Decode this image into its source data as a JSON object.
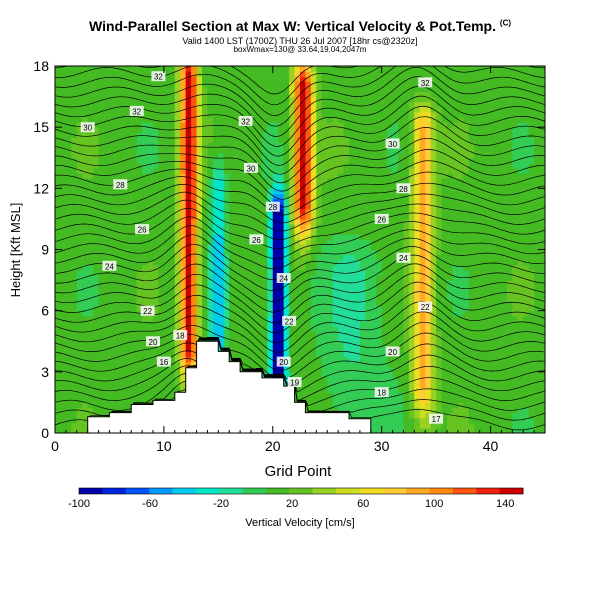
{
  "title": "Wind-Parallel Section at Max W: Vertical Velocity & Pot.Temp.",
  "title_mark": "(C)",
  "subtitle": "Valid 1400 LST (1700Z) THU 26 Jul 2007 [18hr cs@2320z]",
  "subtitle2": "boxWmax=130@ 33.64,19.04,2047m",
  "chart_data": {
    "type": "heatmap",
    "xlabel": "Grid Point",
    "ylabel": "Height [Kft MSL]",
    "xlim": [
      0,
      45
    ],
    "ylim": [
      0,
      18
    ],
    "xticks": [
      0,
      10,
      20,
      30,
      40
    ],
    "yticks": [
      0,
      3,
      6,
      9,
      12,
      15,
      18
    ],
    "colorbar": {
      "label": "Vertical Velocity [cm/s]",
      "range": [
        -100,
        150
      ],
      "ticks": [
        -100,
        -60,
        -20,
        20,
        60,
        100,
        140
      ],
      "colors": [
        "#0000aa",
        "#0022dd",
        "#0055ff",
        "#0099ff",
        "#00ccee",
        "#00e6c8",
        "#22dd99",
        "#33cc55",
        "#44bb22",
        "#66c422",
        "#99d222",
        "#ccdd22",
        "#eedd22",
        "#ffcc33",
        "#ffaa22",
        "#ff8811",
        "#ff5511",
        "#ee2211",
        "#cc0000"
      ]
    },
    "terrain": [
      [
        0,
        0
      ],
      [
        3,
        0
      ],
      [
        3,
        0.8
      ],
      [
        5,
        0.8
      ],
      [
        5,
        1
      ],
      [
        7,
        1
      ],
      [
        7,
        1.4
      ],
      [
        9,
        1.4
      ],
      [
        9,
        1.6
      ],
      [
        11,
        1.6
      ],
      [
        11,
        2
      ],
      [
        12,
        2
      ],
      [
        12,
        3.2
      ],
      [
        13,
        3.2
      ],
      [
        13,
        4.5
      ],
      [
        15,
        4.5
      ],
      [
        15,
        4
      ],
      [
        16,
        4
      ],
      [
        16,
        3.5
      ],
      [
        17,
        3.5
      ],
      [
        17,
        3
      ],
      [
        19,
        3
      ],
      [
        19,
        2.7
      ],
      [
        21,
        2.7
      ],
      [
        21,
        2.3
      ],
      [
        22,
        2.3
      ],
      [
        22,
        1.5
      ],
      [
        23,
        1.5
      ],
      [
        23,
        1
      ],
      [
        27,
        1
      ],
      [
        27,
        0.7
      ],
      [
        29,
        0.7
      ],
      [
        29,
        0
      ]
    ],
    "updrafts": [
      {
        "x": 12.3,
        "w": 0.8,
        "ytop": 17.5,
        "ybot": 4.5,
        "value": 150
      },
      {
        "x": 22.8,
        "w": 0.9,
        "ytop": 17.0,
        "ybot": 11.5,
        "value": 150
      },
      {
        "x": 33.8,
        "w": 1.0,
        "ytop": 15.0,
        "ybot": 2.5,
        "value": 90
      }
    ],
    "downdrafts": [
      {
        "x": 15.0,
        "w": 0.7,
        "ytop": 12.0,
        "ybot": 4.0,
        "value": -35
      },
      {
        "x": 20.5,
        "w": 0.7,
        "ytop": 10.5,
        "ybot": 3.0,
        "value": -110
      },
      {
        "x": 27.5,
        "w": 3.0,
        "ytop": 8.0,
        "ybot": 1.5,
        "value": -5
      }
    ],
    "theta_labels": [
      {
        "x": 9.5,
        "y": 17.5,
        "text": "32"
      },
      {
        "x": 7.5,
        "y": 15.8,
        "text": "32"
      },
      {
        "x": 3.0,
        "y": 15.0,
        "text": "30"
      },
      {
        "x": 6.0,
        "y": 12.2,
        "text": "28"
      },
      {
        "x": 8.0,
        "y": 10.0,
        "text": "26"
      },
      {
        "x": 5.0,
        "y": 8.2,
        "text": "24"
      },
      {
        "x": 8.5,
        "y": 6.0,
        "text": "22"
      },
      {
        "x": 9.0,
        "y": 4.5,
        "text": "20"
      },
      {
        "x": 11.5,
        "y": 4.8,
        "text": "18"
      },
      {
        "x": 10.0,
        "y": 3.5,
        "text": "16"
      },
      {
        "x": 17.5,
        "y": 15.3,
        "text": "32"
      },
      {
        "x": 18.0,
        "y": 13.0,
        "text": "30"
      },
      {
        "x": 20.0,
        "y": 11.1,
        "text": "28"
      },
      {
        "x": 18.5,
        "y": 9.5,
        "text": "26"
      },
      {
        "x": 21.0,
        "y": 7.6,
        "text": "24"
      },
      {
        "x": 21.5,
        "y": 5.5,
        "text": "22"
      },
      {
        "x": 21.0,
        "y": 3.5,
        "text": "20"
      },
      {
        "x": 22.0,
        "y": 2.5,
        "text": "19"
      },
      {
        "x": 34.0,
        "y": 17.2,
        "text": "32"
      },
      {
        "x": 31.0,
        "y": 14.2,
        "text": "30"
      },
      {
        "x": 32.0,
        "y": 12.0,
        "text": "28"
      },
      {
        "x": 30.0,
        "y": 10.5,
        "text": "26"
      },
      {
        "x": 32.0,
        "y": 8.6,
        "text": "24"
      },
      {
        "x": 34.0,
        "y": 6.2,
        "text": "22"
      },
      {
        "x": 31.0,
        "y": 4.0,
        "text": "20"
      },
      {
        "x": 30.0,
        "y": 2.0,
        "text": "18"
      },
      {
        "x": 35.0,
        "y": 0.7,
        "text": "17"
      }
    ]
  }
}
